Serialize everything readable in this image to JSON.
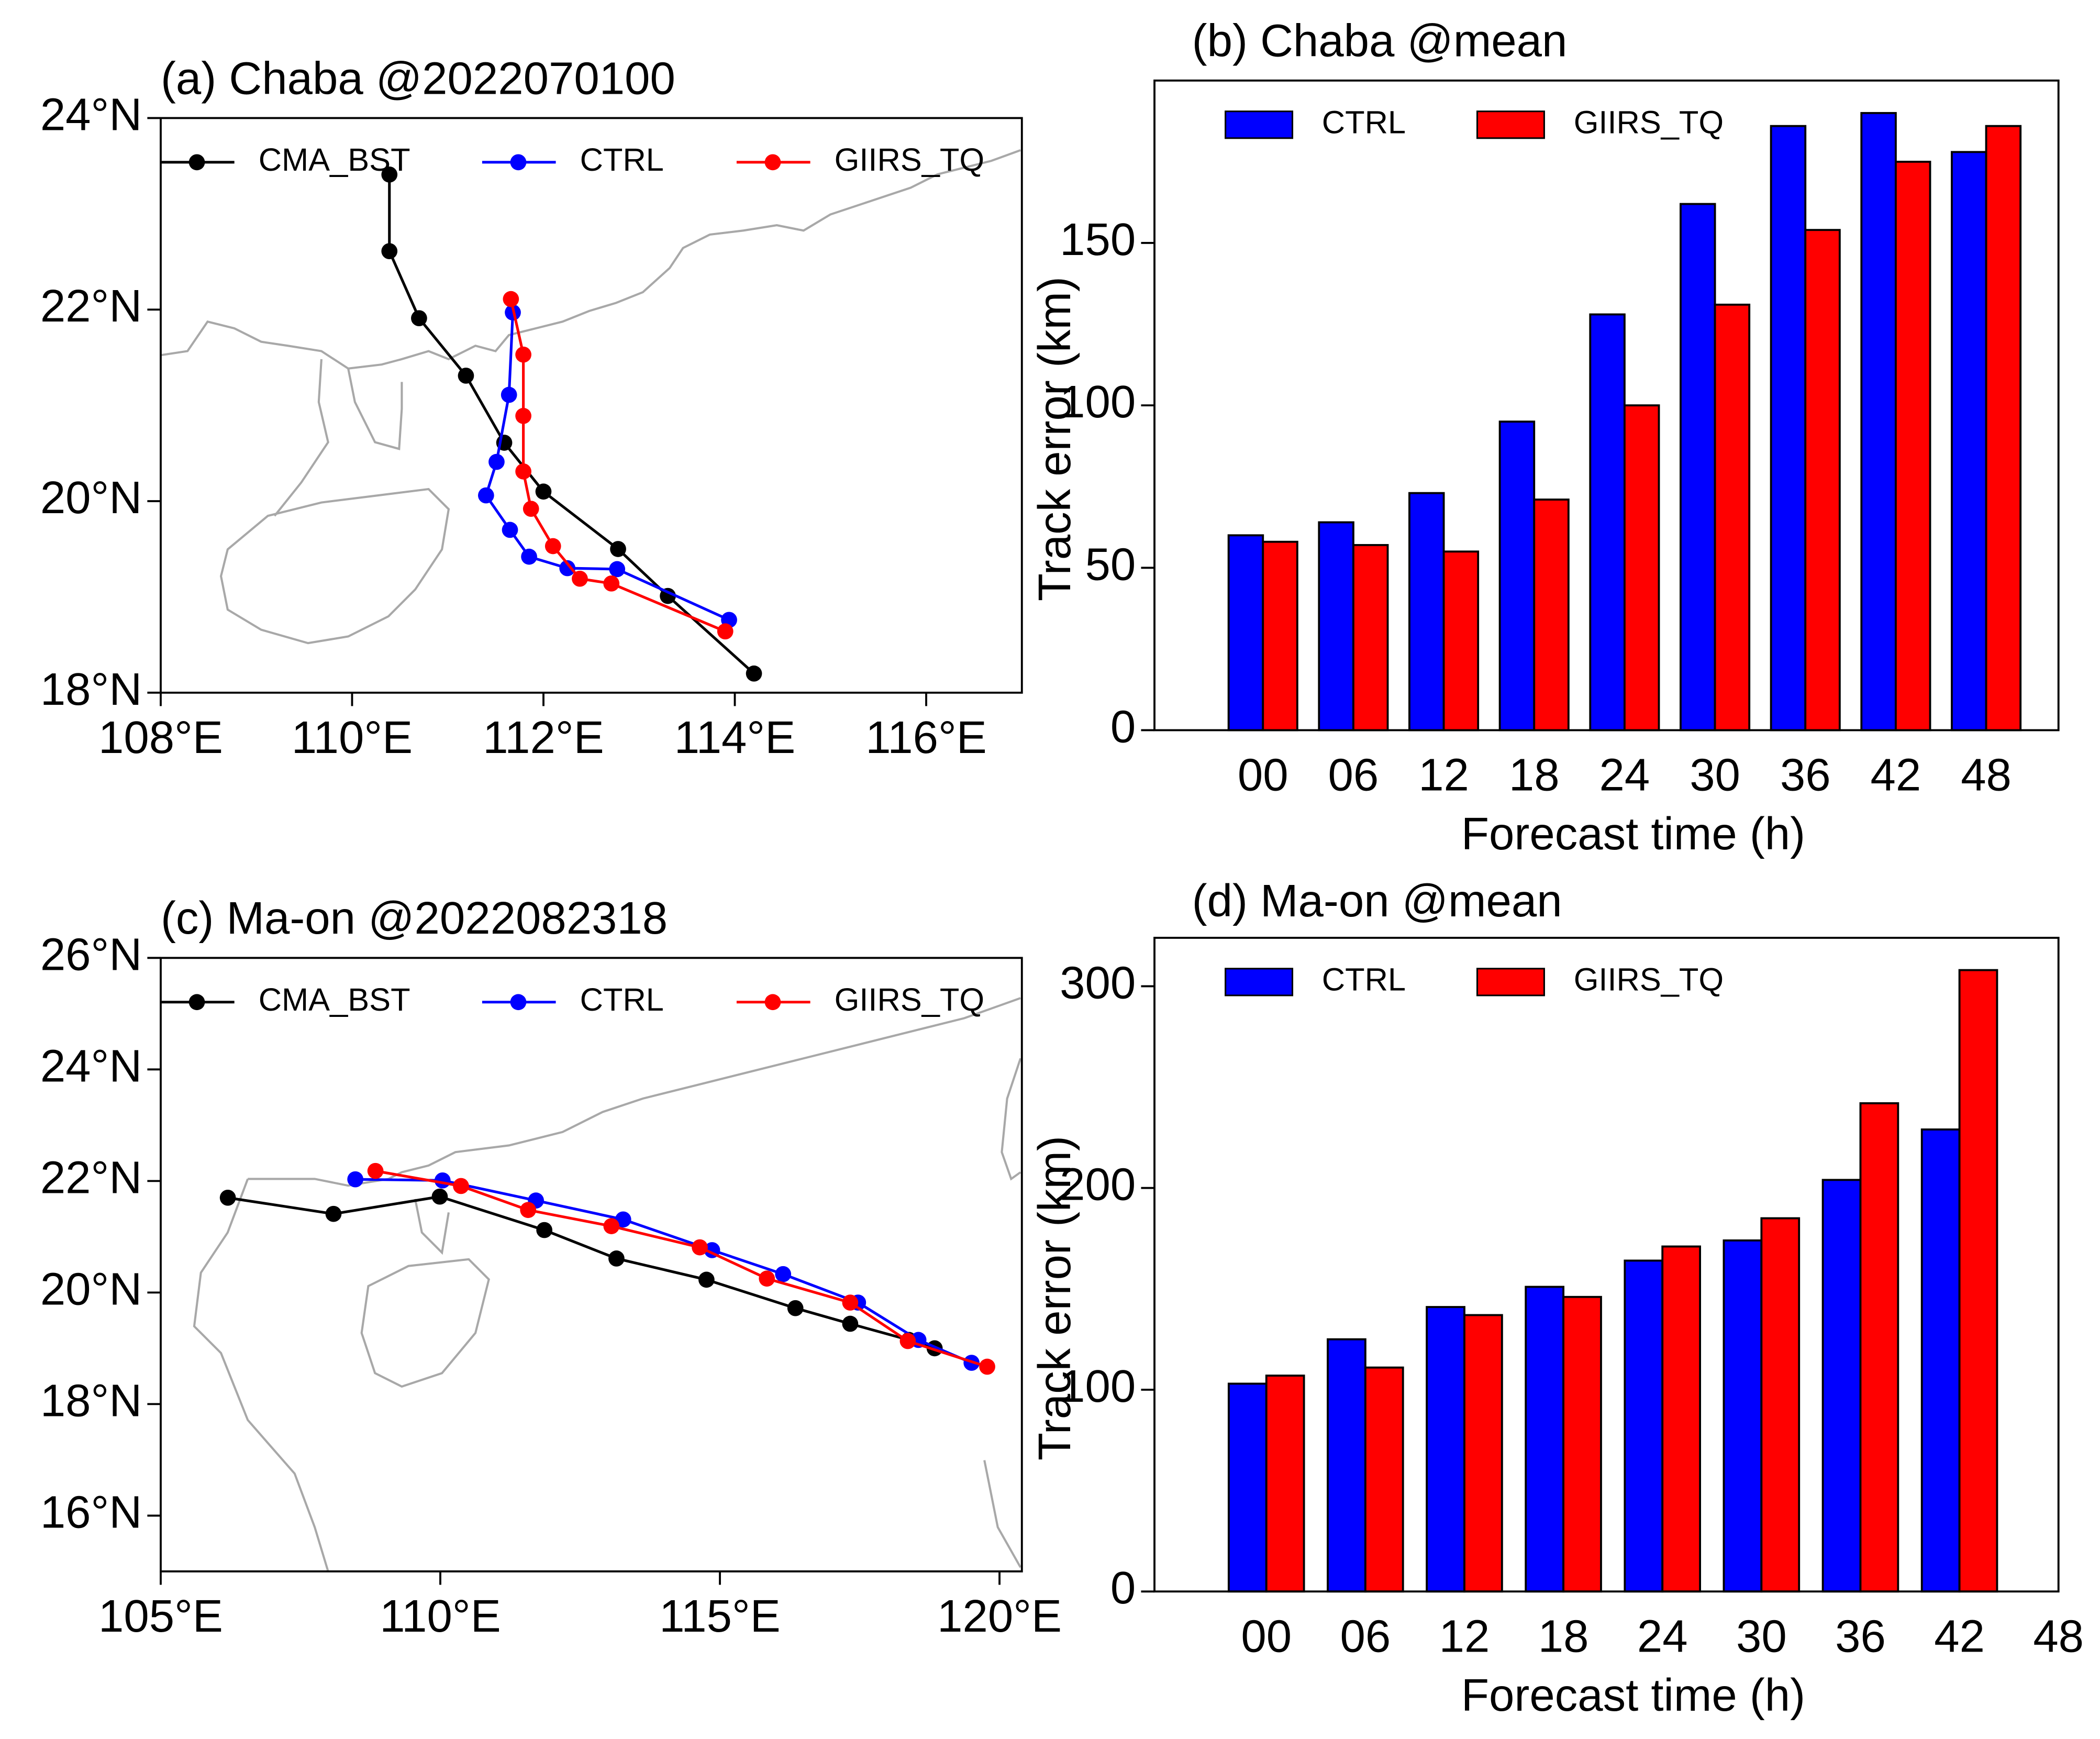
{
  "chart_data": [
    {
      "type": "line",
      "title": "(a) Chaba @2022070100",
      "series": [
        {
          "name": "CMA_BST",
          "color": "#000000",
          "x": [
            110.39,
            110.39,
            110.7,
            111.19,
            111.59,
            112.0,
            112.78,
            113.3,
            114.2
          ],
          "values": [
            23.41,
            22.61,
            21.91,
            21.31,
            20.61,
            20.1,
            19.5,
            19.01,
            18.2
          ]
        },
        {
          "name": "CTRL",
          "color": "#0000ff",
          "x": [
            111.68,
            111.64,
            111.51,
            111.4,
            111.65,
            111.85,
            112.25,
            112.77,
            113.94
          ],
          "values": [
            21.97,
            21.11,
            20.41,
            20.06,
            19.7,
            19.42,
            19.3,
            19.29,
            18.76
          ]
        },
        {
          "name": "GIIRS_TQ",
          "color": "#ff0000",
          "x": [
            111.66,
            111.79,
            111.79,
            111.79,
            111.87,
            112.1,
            112.38,
            112.71,
            113.9
          ],
          "values": [
            22.11,
            21.53,
            20.89,
            20.31,
            19.92,
            19.53,
            19.19,
            19.14,
            18.64
          ]
        }
      ],
      "xlim": [
        108,
        117
      ],
      "xticks": [
        {
          "value": 108,
          "label": "108°E"
        },
        {
          "value": 110,
          "label": "110°E"
        },
        {
          "value": 112,
          "label": "112°E"
        },
        {
          "value": 114,
          "label": "114°E"
        },
        {
          "value": 116,
          "label": "116°E"
        }
      ],
      "ylim": [
        18,
        24
      ],
      "yticks": [
        {
          "value": 18,
          "label": "18°N"
        },
        {
          "value": 20,
          "label": "20°N"
        },
        {
          "value": 22,
          "label": "22°N"
        },
        {
          "value": 24,
          "label": "24°N"
        }
      ],
      "legend": "top"
    },
    {
      "type": "bar",
      "title": "(b) Chaba @mean",
      "categories": [
        "00",
        "06",
        "12",
        "18",
        "24",
        "30",
        "36",
        "42",
        "48"
      ],
      "series": [
        {
          "name": "CTRL",
          "color": "#0000ff",
          "values": [
            60,
            64,
            73,
            95,
            128,
            162,
            186,
            190,
            178
          ]
        },
        {
          "name": "GIIRS_TQ",
          "color": "#ff0000",
          "values": [
            58,
            57,
            55,
            71,
            100,
            131,
            154,
            175,
            186
          ]
        }
      ],
      "xlabel": "Forecast time (h)",
      "ylabel": "Track error (km)",
      "ylim": [
        0,
        200
      ],
      "yticks": [
        0,
        50,
        100,
        150
      ],
      "legend": "upper left"
    },
    {
      "type": "line",
      "title": "(c) Ma-on @2022082318",
      "series": [
        {
          "name": "CMA_BST",
          "color": "#000000",
          "x": [
            106.2,
            108.09,
            109.99,
            111.86,
            113.15,
            114.76,
            116.35,
            117.33,
            118.38,
            118.84
          ],
          "values": [
            21.7,
            21.41,
            21.72,
            21.12,
            20.61,
            20.23,
            19.72,
            19.44,
            19.15,
            19.0
          ]
        },
        {
          "name": "CTRL",
          "color": "#0000ff",
          "x": [
            108.48,
            110.04,
            111.71,
            113.27,
            114.86,
            116.13,
            117.47,
            118.55,
            119.5
          ],
          "values": [
            22.03,
            22.01,
            21.65,
            21.31,
            20.76,
            20.33,
            19.82,
            19.15,
            18.74
          ]
        },
        {
          "name": "GIIRS_TQ",
          "color": "#ff0000",
          "x": [
            108.84,
            110.37,
            111.57,
            113.06,
            114.64,
            115.84,
            117.33,
            118.36,
            119.78
          ],
          "values": [
            22.18,
            21.91,
            21.48,
            21.19,
            20.81,
            20.25,
            19.82,
            19.13,
            18.67
          ]
        }
      ],
      "xlim": [
        105,
        120.4
      ],
      "xticks": [
        {
          "value": 105,
          "label": "105°E"
        },
        {
          "value": 110,
          "label": "110°E"
        },
        {
          "value": 115,
          "label": "115°E"
        },
        {
          "value": 120,
          "label": "120°E"
        }
      ],
      "ylim": [
        15,
        26
      ],
      "yticks": [
        {
          "value": 16,
          "label": "16°N"
        },
        {
          "value": 18,
          "label": "18°N"
        },
        {
          "value": 20,
          "label": "20°N"
        },
        {
          "value": 22,
          "label": "22°N"
        },
        {
          "value": 24,
          "label": "24°N"
        },
        {
          "value": 26,
          "label": "26°N"
        }
      ],
      "legend": "top"
    },
    {
      "type": "bar",
      "title": "(d) Ma-on @mean",
      "categories": [
        "00",
        "06",
        "12",
        "18",
        "24",
        "30",
        "36",
        "42",
        "48"
      ],
      "series": [
        {
          "name": "CTRL",
          "color": "#0000ff",
          "values": [
            103,
            125,
            141,
            151,
            164,
            174,
            204,
            229,
            null
          ]
        },
        {
          "name": "GIIRS_TQ",
          "color": "#ff0000",
          "values": [
            107,
            111,
            137,
            146,
            171,
            185,
            242,
            308,
            null
          ]
        }
      ],
      "xlabel": "Forecast time (h)",
      "ylabel": "Track error (km)",
      "ylim": [
        0,
        324
      ],
      "yticks": [
        0,
        100,
        200,
        300
      ],
      "legend": "upper left"
    }
  ]
}
